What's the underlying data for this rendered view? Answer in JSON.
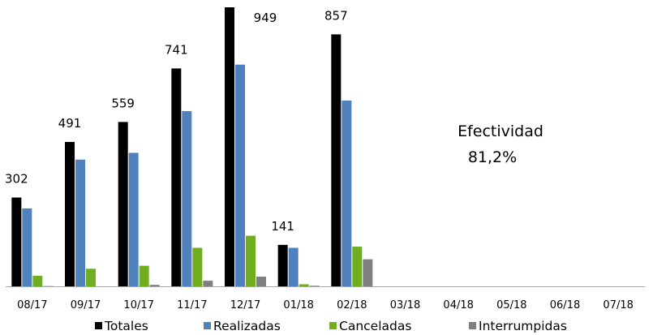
{
  "chart_data": {
    "type": "bar",
    "categories": [
      "08/17",
      "09/17",
      "10/17",
      "11/17",
      "12/17",
      "01/18",
      "02/18",
      "03/18",
      "04/18",
      "05/18",
      "06/18",
      "07/18"
    ],
    "series": [
      {
        "name": "Totales",
        "color": "#000000",
        "values": [
          302,
          491,
          559,
          741,
          949,
          141,
          857,
          null,
          null,
          null,
          null,
          null
        ]
      },
      {
        "name": "Realizadas",
        "color": "#4f81bd",
        "values": [
          265,
          431,
          454,
          596,
          754,
          131,
          632,
          null,
          null,
          null,
          null,
          null
        ]
      },
      {
        "name": "Canceladas",
        "color": "#70ad1f",
        "values": [
          36,
          60,
          70,
          131,
          172,
          7,
          135,
          null,
          null,
          null,
          null,
          null
        ]
      },
      {
        "name": "Interrumpidas",
        "color": "#7f7f7f",
        "values": [
          1,
          0,
          5,
          19,
          33,
          2,
          92,
          null,
          null,
          null,
          null,
          null
        ]
      }
    ],
    "data_labels_series": "Totales",
    "ylim": [
      0,
      949
    ],
    "legend": "bottom",
    "annotation": {
      "line1": "Efectividad",
      "line2": "81,2%"
    }
  }
}
